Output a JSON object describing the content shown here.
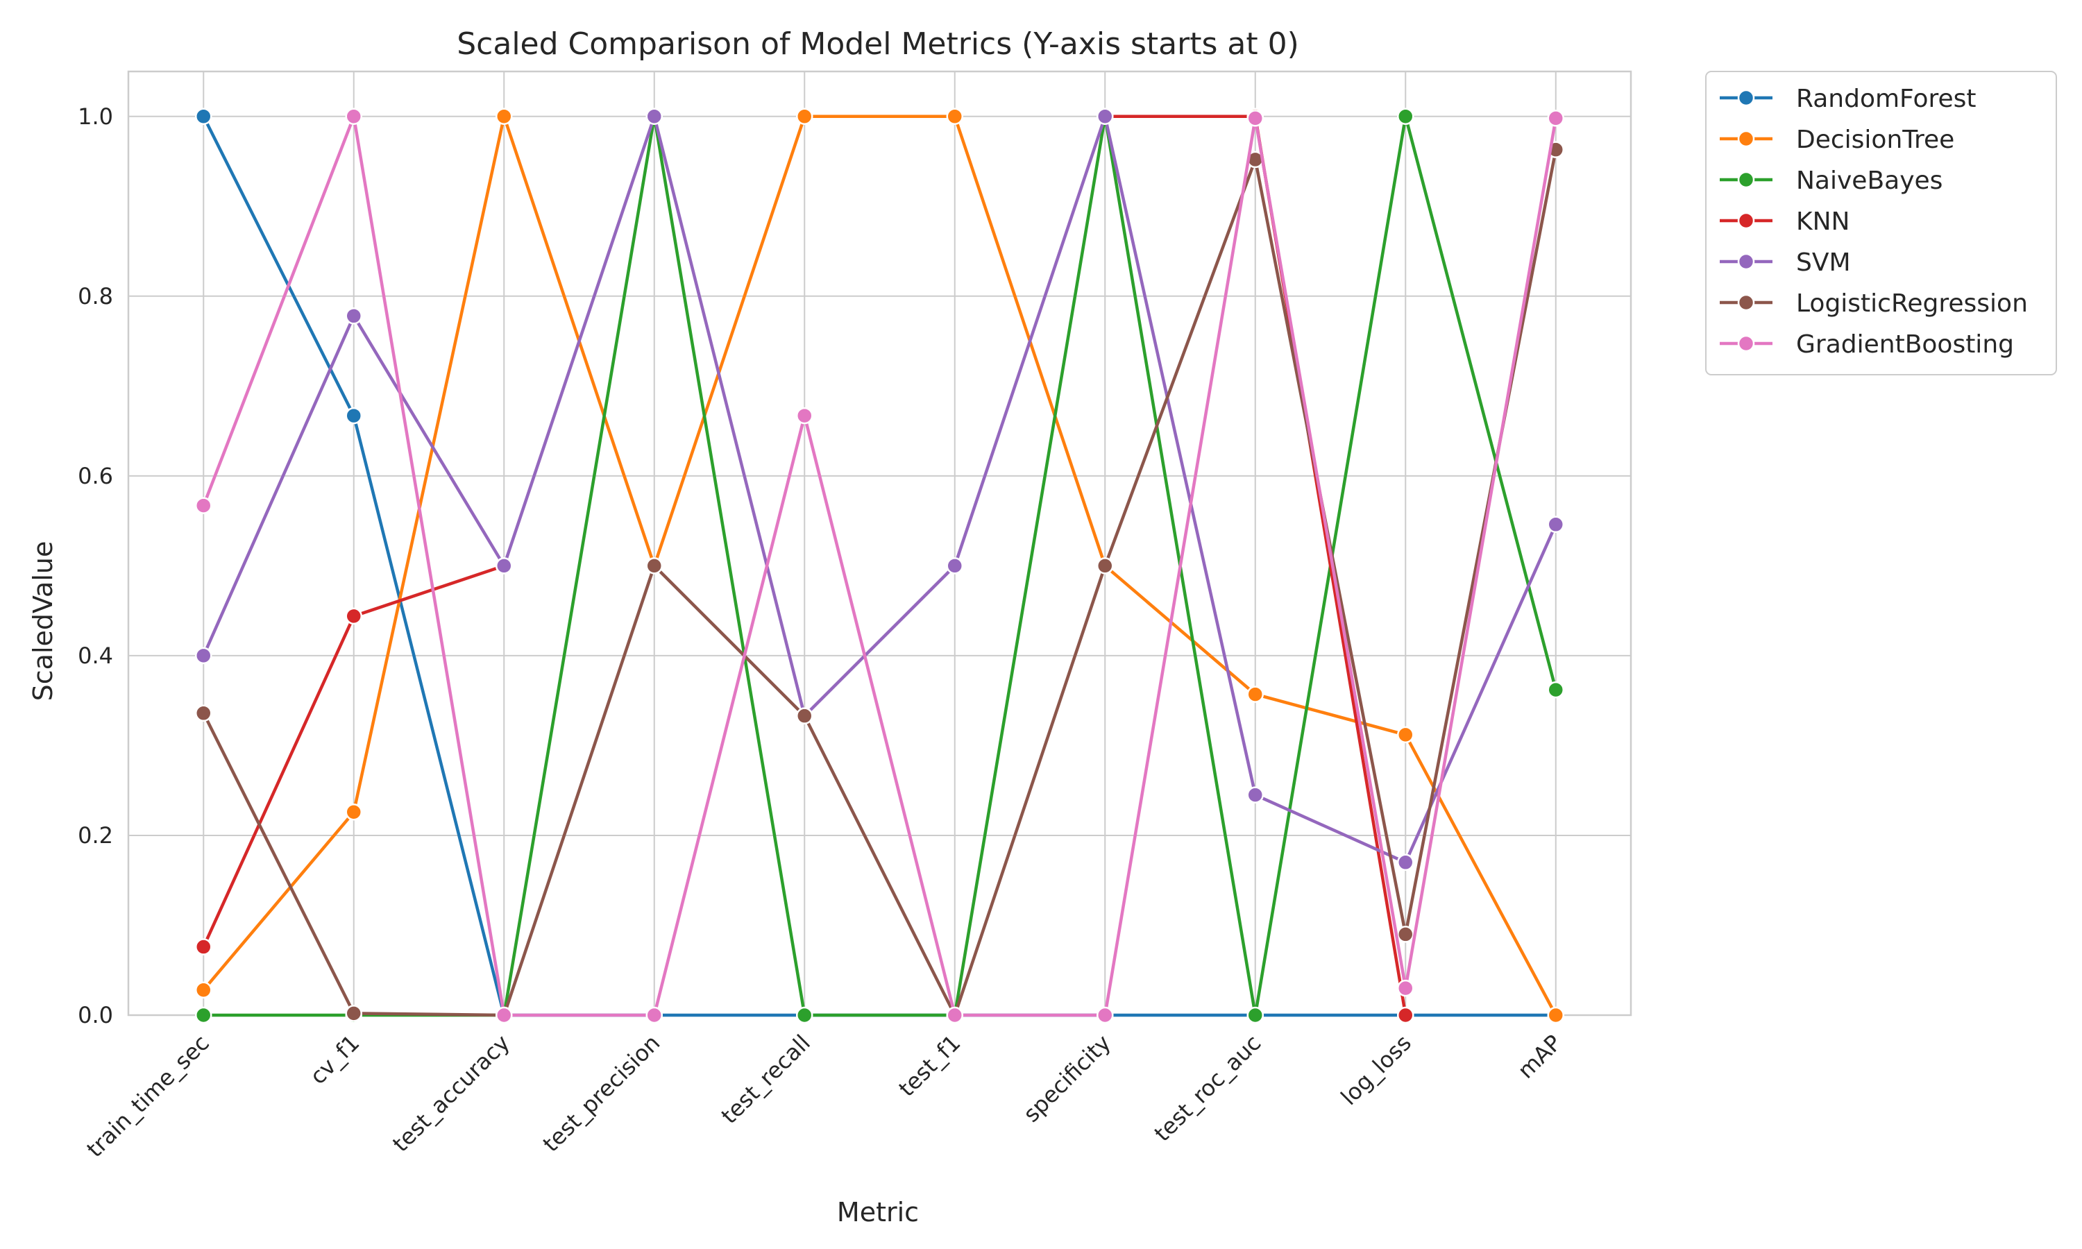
{
  "chart_data": {
    "type": "line",
    "title": "Scaled Comparison of Model Metrics (Y-axis starts at 0)",
    "xlabel": "Metric",
    "ylabel": "ScaledValue",
    "ylim": [
      0,
      1.05
    ],
    "yticks": [
      0.0,
      0.2,
      0.4,
      0.6,
      0.8,
      1.0
    ],
    "ytick_labels": [
      "0.0",
      "0.2",
      "0.4",
      "0.6",
      "0.8",
      "1.0"
    ],
    "grid": true,
    "legend_placement": "outside-top-right",
    "categories": [
      "train_time_sec",
      "cv_f1",
      "test_accuracy",
      "test_precision",
      "test_recall",
      "test_f1",
      "specificity",
      "test_roc_auc",
      "log_loss",
      "mAP"
    ],
    "series": [
      {
        "name": "RandomForest",
        "color": "#1f77b4",
        "values": [
          1.0,
          0.667,
          0.0,
          0.0,
          0.0,
          0.0,
          0.0,
          0.0,
          0.0,
          0.0
        ]
      },
      {
        "name": "DecisionTree",
        "color": "#ff7f0e",
        "values": [
          0.028,
          0.226,
          1.0,
          0.5,
          1.0,
          1.0,
          0.5,
          0.357,
          0.312,
          0.0
        ]
      },
      {
        "name": "NaiveBayes",
        "color": "#2ca02c",
        "values": [
          0.0,
          0.0,
          0.0,
          1.0,
          0.0,
          0.0,
          1.0,
          0.0,
          1.0,
          0.362
        ]
      },
      {
        "name": "KNN",
        "color": "#d62728",
        "values": [
          0.076,
          0.444,
          0.5,
          null,
          null,
          null,
          1.0,
          1.0,
          0.0,
          null
        ]
      },
      {
        "name": "SVM",
        "color": "#9467bd",
        "values": [
          0.4,
          0.778,
          0.5,
          1.0,
          0.333,
          0.5,
          1.0,
          0.245,
          0.17,
          0.546
        ]
      },
      {
        "name": "LogisticRegression",
        "color": "#8c564b",
        "values": [
          0.336,
          0.002,
          0.0,
          0.5,
          0.333,
          0.0,
          0.5,
          0.952,
          0.09,
          0.963
        ]
      },
      {
        "name": "GradientBoosting",
        "color": "#e377c2",
        "values": [
          0.567,
          1.0,
          0.0,
          0.0,
          0.667,
          0.0,
          0.0,
          0.998,
          0.03,
          0.998
        ]
      }
    ]
  }
}
